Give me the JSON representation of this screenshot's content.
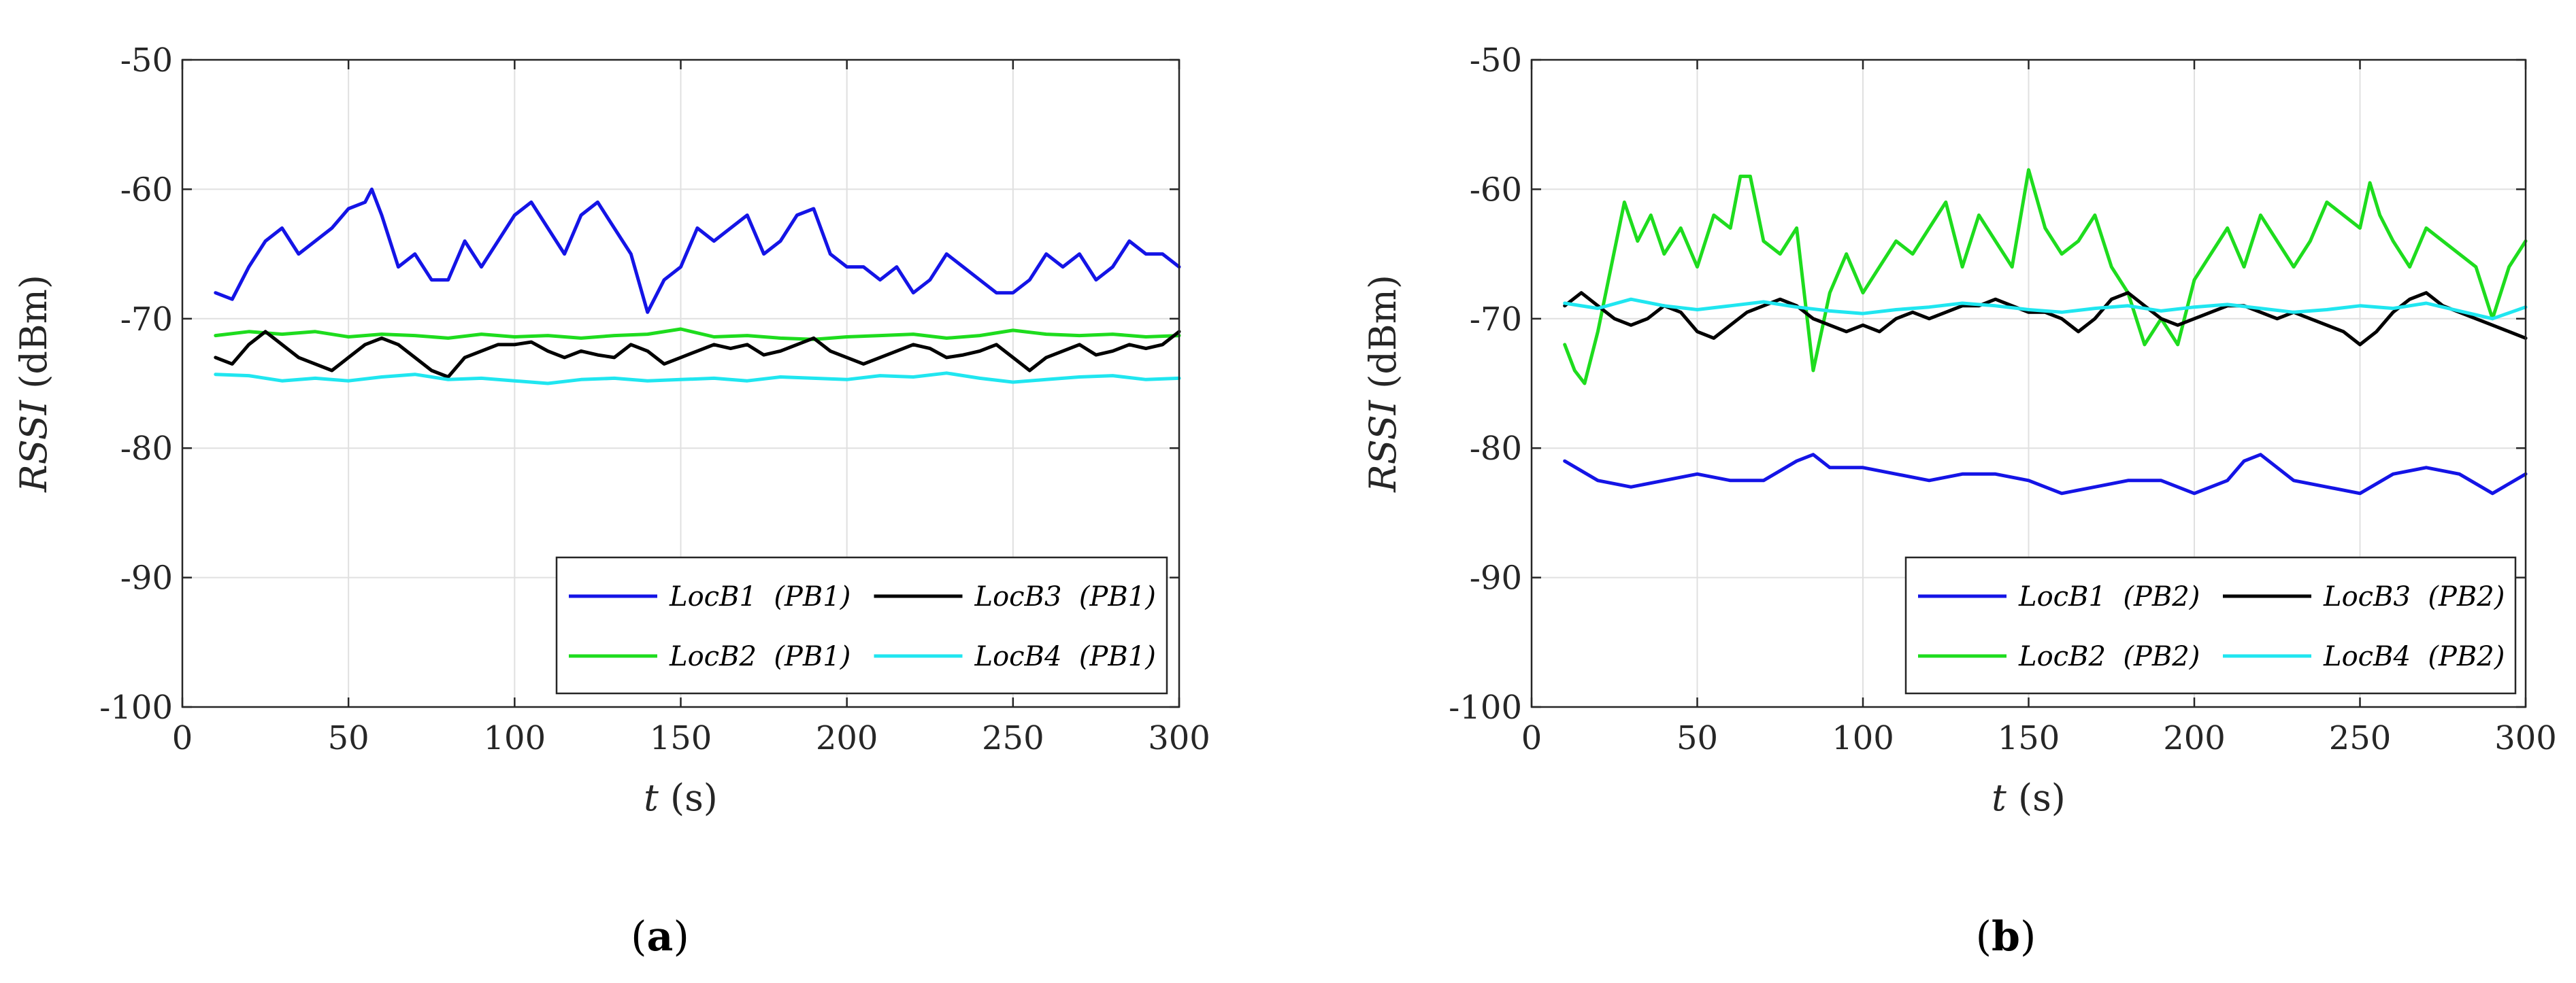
{
  "chart_data": [
    {
      "type": "line",
      "panel_label": "a",
      "xlabel_var": "t",
      "xlabel_unit": "(s)",
      "ylabel_var": "RSSI",
      "ylabel_unit": "(dBm)",
      "xlim": [
        0,
        300
      ],
      "ylim": [
        -100,
        -50
      ],
      "xticks": [
        0,
        50,
        100,
        150,
        200,
        250,
        300
      ],
      "yticks": [
        -50,
        -60,
        -70,
        -80,
        -90,
        -100
      ],
      "grid": true,
      "legend_position": "bottom-right",
      "series": [
        {
          "name": "LocB1",
          "tag": "(PB1)",
          "color": "#1414e6",
          "x": [
            10,
            15,
            20,
            25,
            30,
            35,
            40,
            45,
            50,
            55,
            57,
            60,
            65,
            70,
            75,
            80,
            85,
            90,
            95,
            100,
            105,
            110,
            115,
            120,
            125,
            130,
            135,
            140,
            145,
            150,
            155,
            160,
            165,
            170,
            175,
            180,
            185,
            190,
            195,
            200,
            205,
            210,
            215,
            220,
            225,
            230,
            235,
            240,
            245,
            250,
            255,
            260,
            265,
            270,
            275,
            280,
            285,
            290,
            295,
            300
          ],
          "y": [
            -68,
            -68.5,
            -66,
            -64,
            -63,
            -65,
            -64,
            -63,
            -61.5,
            -61,
            -60,
            -62,
            -66,
            -65,
            -67,
            -67,
            -64,
            -66,
            -64,
            -62,
            -61,
            -63,
            -65,
            -62,
            -61,
            -63,
            -65,
            -69.5,
            -67,
            -66,
            -63,
            -64,
            -63,
            -62,
            -65,
            -64,
            -62,
            -61.5,
            -65,
            -66,
            -66,
            -67,
            -66,
            -68,
            -67,
            -65,
            -66,
            -67,
            -68,
            -68,
            -67,
            -65,
            -66,
            -65,
            -67,
            -66,
            -64,
            -65,
            -65,
            -66
          ]
        },
        {
          "name": "LocB2",
          "tag": "(PB1)",
          "color": "#1edc1e",
          "x": [
            10,
            20,
            30,
            40,
            50,
            60,
            70,
            80,
            90,
            100,
            110,
            120,
            130,
            140,
            150,
            160,
            170,
            180,
            190,
            200,
            210,
            220,
            230,
            240,
            250,
            260,
            270,
            280,
            290,
            300
          ],
          "y": [
            -71.3,
            -71,
            -71.2,
            -71,
            -71.4,
            -71.2,
            -71.3,
            -71.5,
            -71.2,
            -71.4,
            -71.3,
            -71.5,
            -71.3,
            -71.2,
            -70.8,
            -71.4,
            -71.3,
            -71.5,
            -71.6,
            -71.4,
            -71.3,
            -71.2,
            -71.5,
            -71.3,
            -70.9,
            -71.2,
            -71.3,
            -71.2,
            -71.4,
            -71.3
          ]
        },
        {
          "name": "LocB3",
          "tag": "(PB1)",
          "color": "#000000",
          "x": [
            10,
            15,
            20,
            25,
            30,
            35,
            40,
            45,
            50,
            55,
            60,
            65,
            70,
            75,
            80,
            85,
            90,
            95,
            100,
            105,
            110,
            115,
            120,
            125,
            130,
            135,
            140,
            145,
            150,
            155,
            160,
            165,
            170,
            175,
            180,
            185,
            190,
            195,
            200,
            205,
            210,
            215,
            220,
            225,
            230,
            235,
            240,
            245,
            250,
            255,
            260,
            265,
            270,
            275,
            280,
            285,
            290,
            295,
            300
          ],
          "y": [
            -73,
            -73.5,
            -72,
            -71,
            -72,
            -73,
            -73.5,
            -74,
            -73,
            -72,
            -71.5,
            -72,
            -73,
            -74,
            -74.5,
            -73,
            -72.5,
            -72,
            -72,
            -71.8,
            -72.5,
            -73,
            -72.5,
            -72.8,
            -73,
            -72,
            -72.5,
            -73.5,
            -73,
            -72.5,
            -72,
            -72.3,
            -72,
            -72.8,
            -72.5,
            -72,
            -71.5,
            -72.5,
            -73,
            -73.5,
            -73,
            -72.5,
            -72,
            -72.3,
            -73,
            -72.8,
            -72.5,
            -72,
            -73,
            -74,
            -73,
            -72.5,
            -72,
            -72.8,
            -72.5,
            -72,
            -72.3,
            -72,
            -71
          ]
        },
        {
          "name": "LocB4",
          "tag": "(PB1)",
          "color": "#20e6f0",
          "x": [
            10,
            20,
            30,
            40,
            50,
            60,
            70,
            80,
            90,
            100,
            110,
            120,
            130,
            140,
            150,
            160,
            170,
            180,
            190,
            200,
            210,
            220,
            230,
            240,
            250,
            260,
            270,
            280,
            290,
            300
          ],
          "y": [
            -74.3,
            -74.4,
            -74.8,
            -74.6,
            -74.8,
            -74.5,
            -74.3,
            -74.7,
            -74.6,
            -74.8,
            -75,
            -74.7,
            -74.6,
            -74.8,
            -74.7,
            -74.6,
            -74.8,
            -74.5,
            -74.6,
            -74.7,
            -74.4,
            -74.5,
            -74.2,
            -74.6,
            -74.9,
            -74.7,
            -74.5,
            -74.4,
            -74.7,
            -74.6
          ]
        }
      ],
      "legend": [
        {
          "name": "LocB1",
          "tag": "(PB1)"
        },
        {
          "name": "LocB3",
          "tag": "(PB1)"
        },
        {
          "name": "LocB2",
          "tag": "(PB1)"
        },
        {
          "name": "LocB4",
          "tag": "(PB1)"
        }
      ]
    },
    {
      "type": "line",
      "panel_label": "b",
      "xlabel_var": "t",
      "xlabel_unit": "(s)",
      "ylabel_var": "RSSI",
      "ylabel_unit": "(dBm)",
      "xlim": [
        0,
        300
      ],
      "ylim": [
        -100,
        -50
      ],
      "xticks": [
        0,
        50,
        100,
        150,
        200,
        250,
        300
      ],
      "yticks": [
        -50,
        -60,
        -70,
        -80,
        -90,
        -100
      ],
      "grid": true,
      "legend_position": "bottom-right",
      "series": [
        {
          "name": "LocB1",
          "tag": "(PB2)",
          "color": "#1414e6",
          "x": [
            10,
            20,
            30,
            40,
            50,
            60,
            70,
            80,
            85,
            90,
            100,
            110,
            120,
            130,
            140,
            150,
            160,
            170,
            180,
            190,
            200,
            210,
            215,
            220,
            230,
            240,
            250,
            260,
            270,
            280,
            290,
            300
          ],
          "y": [
            -81,
            -82.5,
            -83,
            -82.5,
            -82,
            -82.5,
            -82.5,
            -81,
            -80.5,
            -81.5,
            -81.5,
            -82,
            -82.5,
            -82,
            -82,
            -82.5,
            -83.5,
            -83,
            -82.5,
            -82.5,
            -83.5,
            -82.5,
            -81,
            -80.5,
            -82.5,
            -83,
            -83.5,
            -82,
            -81.5,
            -82,
            -83.5,
            -82
          ]
        },
        {
          "name": "LocB2",
          "tag": "(PB2)",
          "color": "#1edc1e",
          "x": [
            10,
            13,
            16,
            20,
            24,
            28,
            32,
            36,
            40,
            45,
            50,
            55,
            60,
            63,
            66,
            70,
            75,
            80,
            85,
            90,
            95,
            100,
            105,
            110,
            115,
            120,
            125,
            130,
            135,
            140,
            145,
            150,
            155,
            160,
            165,
            170,
            175,
            180,
            185,
            190,
            195,
            200,
            205,
            210,
            215,
            220,
            225,
            230,
            235,
            240,
            245,
            250,
            253,
            256,
            260,
            265,
            270,
            275,
            280,
            285,
            290,
            295,
            300
          ],
          "y": [
            -72,
            -74,
            -75,
            -71,
            -66,
            -61,
            -64,
            -62,
            -65,
            -63,
            -66,
            -62,
            -63,
            -59,
            -59,
            -64,
            -65,
            -63,
            -74,
            -68,
            -65,
            -68,
            -66,
            -64,
            -65,
            -63,
            -61,
            -66,
            -62,
            -64,
            -66,
            -58.5,
            -63,
            -65,
            -64,
            -62,
            -66,
            -68,
            -72,
            -70,
            -72,
            -67,
            -65,
            -63,
            -66,
            -62,
            -64,
            -66,
            -64,
            -61,
            -62,
            -63,
            -59.5,
            -62,
            -64,
            -66,
            -63,
            -64,
            -65,
            -66,
            -70,
            -66,
            -64
          ]
        },
        {
          "name": "LocB3",
          "tag": "(PB2)",
          "color": "#000000",
          "x": [
            10,
            15,
            20,
            25,
            30,
            35,
            40,
            45,
            50,
            55,
            60,
            65,
            70,
            75,
            80,
            85,
            90,
            95,
            100,
            105,
            110,
            115,
            120,
            125,
            130,
            135,
            140,
            145,
            150,
            155,
            160,
            165,
            170,
            175,
            180,
            185,
            190,
            195,
            200,
            205,
            210,
            215,
            220,
            225,
            230,
            235,
            240,
            245,
            250,
            255,
            260,
            265,
            270,
            275,
            280,
            285,
            290,
            295,
            300
          ],
          "y": [
            -69,
            -68,
            -69,
            -70,
            -70.5,
            -70,
            -69,
            -69.5,
            -71,
            -71.5,
            -70.5,
            -69.5,
            -69,
            -68.5,
            -69,
            -70,
            -70.5,
            -71,
            -70.5,
            -71,
            -70,
            -69.5,
            -70,
            -69.5,
            -69,
            -69,
            -68.5,
            -69,
            -69.5,
            -69.5,
            -70,
            -71,
            -70,
            -68.5,
            -68,
            -69,
            -70,
            -70.5,
            -70,
            -69.5,
            -69,
            -69,
            -69.5,
            -70,
            -69.5,
            -70,
            -70.5,
            -71,
            -72,
            -71,
            -69.5,
            -68.5,
            -68,
            -69,
            -69.5,
            -70,
            -70.5,
            -71,
            -71.5
          ]
        },
        {
          "name": "LocB4",
          "tag": "(PB2)",
          "color": "#20e6f0",
          "x": [
            10,
            20,
            30,
            40,
            50,
            60,
            70,
            80,
            90,
            100,
            110,
            120,
            130,
            140,
            150,
            160,
            170,
            180,
            190,
            200,
            210,
            220,
            230,
            240,
            250,
            260,
            270,
            280,
            290,
            300
          ],
          "y": [
            -68.8,
            -69.2,
            -68.5,
            -69,
            -69.3,
            -69,
            -68.7,
            -69.1,
            -69.4,
            -69.6,
            -69.3,
            -69.1,
            -68.8,
            -69,
            -69.3,
            -69.5,
            -69.2,
            -69,
            -69.4,
            -69.1,
            -68.9,
            -69.2,
            -69.5,
            -69.3,
            -69,
            -69.2,
            -68.8,
            -69.4,
            -70,
            -69.1
          ]
        }
      ],
      "legend": [
        {
          "name": "LocB1",
          "tag": "(PB2)"
        },
        {
          "name": "LocB3",
          "tag": "(PB2)"
        },
        {
          "name": "LocB2",
          "tag": "(PB2)"
        },
        {
          "name": "LocB4",
          "tag": "(PB2)"
        }
      ]
    }
  ]
}
